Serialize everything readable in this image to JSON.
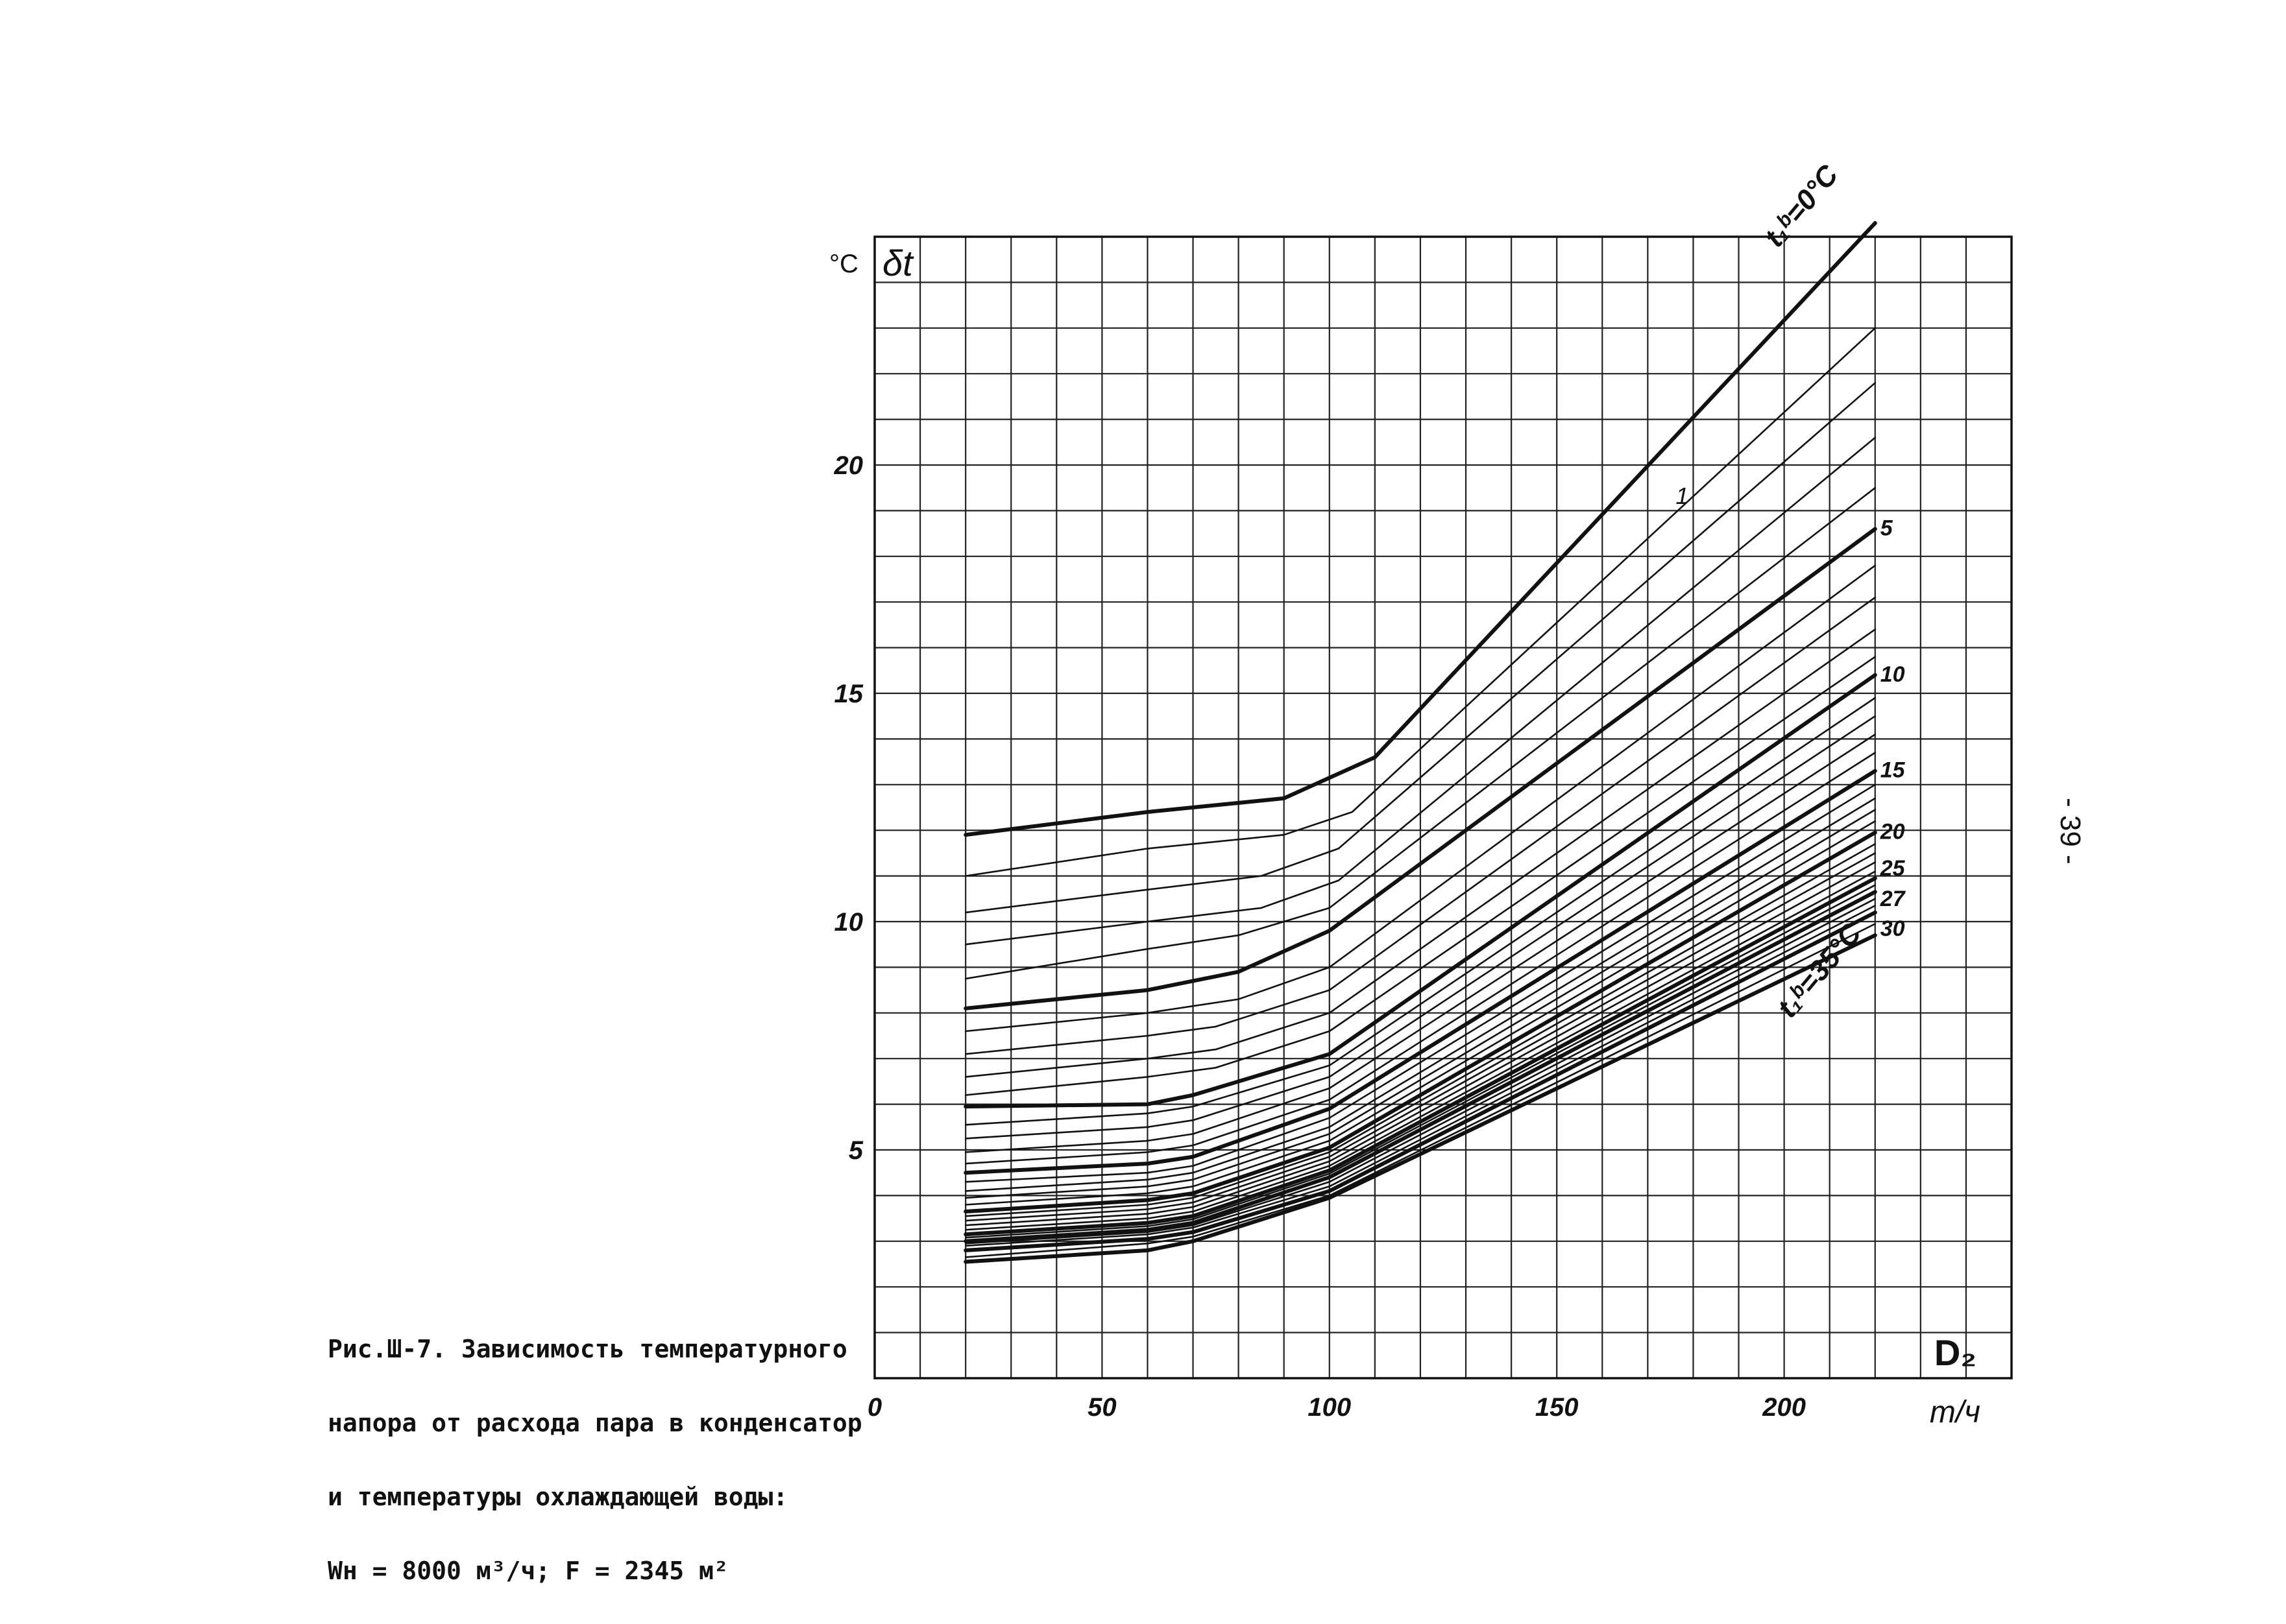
{
  "caption": {
    "line1": "Рис.Ш-7. Зависимость температурного",
    "line2": "напора от расхода пара в конденсатор",
    "line3": "и температуры охлаждающей воды:",
    "line4": "Wн = 8000 м³/ч; F = 2345 м²"
  },
  "page_number": "- 39 -",
  "chart_data": {
    "type": "line",
    "title": "",
    "xlabel": "D₂",
    "x_unit": "т/ч",
    "ylabel": "δt",
    "y_unit": "°C",
    "xlim": [
      0,
      250
    ],
    "ylim": [
      0,
      25
    ],
    "x_ticks": [
      0,
      50,
      100,
      150,
      200
    ],
    "x_tick_labels": [
      "0",
      "50",
      "100",
      "150",
      "200"
    ],
    "y_ticks": [
      5,
      10,
      15,
      20
    ],
    "y_tick_labels": [
      "5",
      "10",
      "15",
      "20"
    ],
    "grid": true,
    "parameter_name": "t₁ᵇ",
    "curve_labels": [
      {
        "param": 0,
        "text": "t₁ᵇ=0°C"
      },
      {
        "param": 1,
        "text": "1"
      },
      {
        "param": 5,
        "text": "5"
      },
      {
        "param": 10,
        "text": "10"
      },
      {
        "param": 15,
        "text": "15"
      },
      {
        "param": 20,
        "text": "20"
      },
      {
        "param": 25,
        "text": "25"
      },
      {
        "param": 27,
        "text": "27"
      },
      {
        "param": 30,
        "text": "30"
      },
      {
        "param": 35,
        "text": "t₁ᵇ=35°C"
      }
    ],
    "series": [
      {
        "param": 0,
        "bold": true,
        "x": [
          20,
          60,
          90,
          110,
          220
        ],
        "y": [
          11.9,
          12.4,
          12.7,
          13.6,
          25.3
        ]
      },
      {
        "param": 1,
        "bold": false,
        "x": [
          20,
          60,
          90,
          105,
          220
        ],
        "y": [
          11.0,
          11.6,
          11.9,
          12.4,
          23.0
        ]
      },
      {
        "param": 2,
        "bold": false,
        "x": [
          20,
          60,
          85,
          102,
          220
        ],
        "y": [
          10.2,
          10.7,
          11.0,
          11.6,
          21.8
        ]
      },
      {
        "param": 3,
        "bold": false,
        "x": [
          20,
          60,
          85,
          102,
          220
        ],
        "y": [
          9.5,
          10.0,
          10.3,
          10.9,
          20.6
        ]
      },
      {
        "param": 4,
        "bold": false,
        "x": [
          20,
          60,
          80,
          100,
          220
        ],
        "y": [
          8.75,
          9.4,
          9.7,
          10.3,
          19.5
        ]
      },
      {
        "param": 5,
        "bold": true,
        "x": [
          20,
          60,
          80,
          100,
          220
        ],
        "y": [
          8.1,
          8.5,
          8.9,
          9.8,
          18.6
        ]
      },
      {
        "param": 6,
        "bold": false,
        "x": [
          20,
          60,
          80,
          100,
          220
        ],
        "y": [
          7.6,
          8.0,
          8.3,
          9.0,
          17.8
        ]
      },
      {
        "param": 7,
        "bold": false,
        "x": [
          20,
          60,
          75,
          100,
          220
        ],
        "y": [
          7.1,
          7.5,
          7.7,
          8.5,
          17.1
        ]
      },
      {
        "param": 8,
        "bold": false,
        "x": [
          20,
          60,
          75,
          100,
          220
        ],
        "y": [
          6.6,
          7.0,
          7.2,
          8.0,
          16.4
        ]
      },
      {
        "param": 9,
        "bold": false,
        "x": [
          20,
          60,
          75,
          100,
          220
        ],
        "y": [
          6.2,
          6.6,
          6.8,
          7.6,
          15.8
        ]
      },
      {
        "param": 10,
        "bold": true,
        "x": [
          20,
          60,
          70,
          100,
          220
        ],
        "y": [
          5.95,
          6.0,
          6.2,
          7.1,
          15.4
        ]
      },
      {
        "param": 11,
        "bold": false,
        "x": [
          20,
          60,
          70,
          100,
          220
        ],
        "y": [
          5.55,
          5.8,
          5.95,
          6.85,
          14.9
        ]
      },
      {
        "param": 12,
        "bold": false,
        "x": [
          20,
          60,
          70,
          100,
          220
        ],
        "y": [
          5.25,
          5.5,
          5.65,
          6.6,
          14.5
        ]
      },
      {
        "param": 13,
        "bold": false,
        "x": [
          20,
          60,
          70,
          100,
          220
        ],
        "y": [
          4.95,
          5.2,
          5.35,
          6.35,
          14.1
        ]
      },
      {
        "param": 14,
        "bold": false,
        "x": [
          20,
          60,
          70,
          100,
          220
        ],
        "y": [
          4.7,
          4.95,
          5.1,
          6.1,
          13.7
        ]
      },
      {
        "param": 15,
        "bold": true,
        "x": [
          20,
          60,
          70,
          100,
          220
        ],
        "y": [
          4.5,
          4.7,
          4.85,
          5.9,
          13.3
        ]
      },
      {
        "param": 16,
        "bold": false,
        "x": [
          20,
          60,
          70,
          100,
          220
        ],
        "y": [
          4.3,
          4.5,
          4.65,
          5.7,
          13.0
        ]
      },
      {
        "param": 17,
        "bold": false,
        "x": [
          20,
          60,
          70,
          100,
          220
        ],
        "y": [
          4.1,
          4.35,
          4.5,
          5.5,
          12.7
        ]
      },
      {
        "param": 18,
        "bold": false,
        "x": [
          20,
          60,
          70,
          100,
          220
        ],
        "y": [
          3.95,
          4.2,
          4.35,
          5.35,
          12.45
        ]
      },
      {
        "param": 19,
        "bold": false,
        "x": [
          20,
          60,
          70,
          100,
          220
        ],
        "y": [
          3.8,
          4.05,
          4.2,
          5.2,
          12.2
        ]
      },
      {
        "param": 20,
        "bold": true,
        "x": [
          20,
          60,
          70,
          100,
          220
        ],
        "y": [
          3.65,
          3.9,
          4.05,
          5.05,
          11.95
        ]
      },
      {
        "param": 21,
        "bold": false,
        "x": [
          20,
          60,
          70,
          100,
          220
        ],
        "y": [
          3.55,
          3.8,
          3.95,
          4.95,
          11.7
        ]
      },
      {
        "param": 22,
        "bold": false,
        "x": [
          20,
          60,
          70,
          100,
          220
        ],
        "y": [
          3.45,
          3.7,
          3.85,
          4.85,
          11.5
        ]
      },
      {
        "param": 23,
        "bold": false,
        "x": [
          20,
          60,
          70,
          100,
          220
        ],
        "y": [
          3.35,
          3.6,
          3.75,
          4.75,
          11.3
        ]
      },
      {
        "param": 24,
        "bold": false,
        "x": [
          20,
          60,
          70,
          100,
          220
        ],
        "y": [
          3.25,
          3.5,
          3.65,
          4.65,
          11.1
        ]
      },
      {
        "param": 25,
        "bold": true,
        "x": [
          20,
          60,
          70,
          100,
          220
        ],
        "y": [
          3.15,
          3.4,
          3.55,
          4.55,
          10.95
        ]
      },
      {
        "param": 26,
        "bold": false,
        "x": [
          20,
          60,
          70,
          100,
          220
        ],
        "y": [
          3.08,
          3.33,
          3.48,
          4.48,
          10.8
        ]
      },
      {
        "param": 27,
        "bold": true,
        "x": [
          20,
          60,
          70,
          100,
          220
        ],
        "y": [
          3.0,
          3.25,
          3.4,
          4.4,
          10.65
        ]
      },
      {
        "param": 28,
        "bold": false,
        "x": [
          20,
          60,
          70,
          100,
          220
        ],
        "y": [
          2.95,
          3.2,
          3.35,
          4.3,
          10.5
        ]
      },
      {
        "param": 29,
        "bold": false,
        "x": [
          20,
          60,
          70,
          100,
          220
        ],
        "y": [
          2.9,
          3.15,
          3.3,
          4.2,
          10.35
        ]
      },
      {
        "param": 30,
        "bold": true,
        "x": [
          20,
          60,
          70,
          100,
          220
        ],
        "y": [
          2.8,
          3.05,
          3.2,
          4.1,
          10.2
        ]
      },
      {
        "param": 32,
        "bold": false,
        "x": [
          20,
          60,
          70,
          100,
          220
        ],
        "y": [
          2.65,
          2.95,
          3.1,
          4.0,
          9.95
        ]
      },
      {
        "param": 35,
        "bold": true,
        "x": [
          20,
          60,
          70,
          100,
          220
        ],
        "y": [
          2.55,
          2.8,
          3.0,
          3.95,
          9.7
        ]
      }
    ]
  }
}
